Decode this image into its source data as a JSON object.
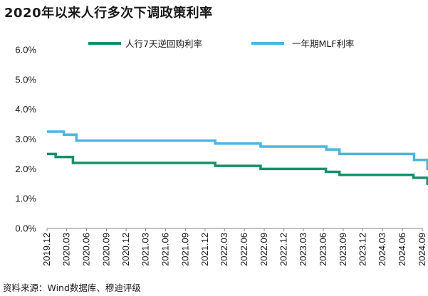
{
  "title": "2020年以来人行多次下调政策利率",
  "source": "资料来源：Wind数据库、穆迪评级",
  "chart_data": {
    "type": "line",
    "legend_position": "top",
    "grid": false,
    "ylim": [
      0,
      6
    ],
    "y_ticks": [
      "0.0%",
      "1.0%",
      "2.0%",
      "3.0%",
      "4.0%",
      "5.0%",
      "6.0%"
    ],
    "x_range": [
      "2019-12",
      "2024-09"
    ],
    "x_ticks": [
      "2019.12",
      "2020.03",
      "2020.06",
      "2020.09",
      "2020.12",
      "2021.03",
      "2021.06",
      "2021.09",
      "2021.12",
      "2022.03",
      "2022.06",
      "2022.09",
      "2022.12",
      "2023.03",
      "2023.06",
      "2023.09",
      "2023.12",
      "2024.03",
      "2024.06",
      "2024.09"
    ],
    "series": [
      {
        "name": "人行7天逆回购利率",
        "color": "#13916a",
        "points": [
          [
            "2019-12-01",
            2.5
          ],
          [
            "2020-01-10",
            2.5
          ],
          [
            "2020-01-10",
            2.4
          ],
          [
            "2020-03-30",
            2.4
          ],
          [
            "2020-03-30",
            2.2
          ],
          [
            "2022-01-17",
            2.2
          ],
          [
            "2022-01-17",
            2.1
          ],
          [
            "2022-08-15",
            2.1
          ],
          [
            "2022-08-15",
            2.0
          ],
          [
            "2023-06-13",
            2.0
          ],
          [
            "2023-06-13",
            1.9
          ],
          [
            "2023-08-15",
            1.9
          ],
          [
            "2023-08-15",
            1.8
          ],
          [
            "2024-07-22",
            1.8
          ],
          [
            "2024-07-22",
            1.7
          ],
          [
            "2024-09-25",
            1.7
          ],
          [
            "2024-09-25",
            1.5
          ],
          [
            "2024-09-30",
            1.5
          ]
        ]
      },
      {
        "name": "一年期MLF利率",
        "color": "#4cb5e0",
        "points": [
          [
            "2019-12-01",
            3.25
          ],
          [
            "2020-02-17",
            3.25
          ],
          [
            "2020-02-17",
            3.15
          ],
          [
            "2020-04-15",
            3.15
          ],
          [
            "2020-04-15",
            2.95
          ],
          [
            "2022-01-17",
            2.95
          ],
          [
            "2022-01-17",
            2.85
          ],
          [
            "2022-08-15",
            2.85
          ],
          [
            "2022-08-15",
            2.75
          ],
          [
            "2023-06-15",
            2.75
          ],
          [
            "2023-06-15",
            2.65
          ],
          [
            "2023-08-15",
            2.65
          ],
          [
            "2023-08-15",
            2.5
          ],
          [
            "2024-07-25",
            2.5
          ],
          [
            "2024-07-25",
            2.3
          ],
          [
            "2024-09-25",
            2.3
          ],
          [
            "2024-09-25",
            2.0
          ],
          [
            "2024-09-30",
            2.0
          ]
        ]
      }
    ]
  }
}
